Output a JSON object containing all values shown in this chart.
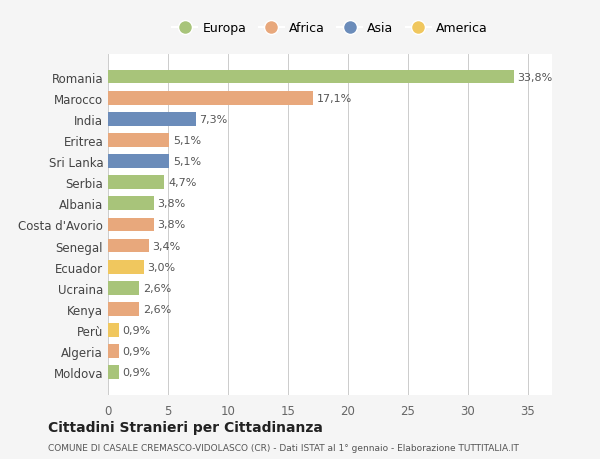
{
  "countries": [
    "Romania",
    "Marocco",
    "India",
    "Eritrea",
    "Sri Lanka",
    "Serbia",
    "Albania",
    "Costa d'Avorio",
    "Senegal",
    "Ecuador",
    "Ucraina",
    "Kenya",
    "Perù",
    "Algeria",
    "Moldova"
  ],
  "values": [
    33.8,
    17.1,
    7.3,
    5.1,
    5.1,
    4.7,
    3.8,
    3.8,
    3.4,
    3.0,
    2.6,
    2.6,
    0.9,
    0.9,
    0.9
  ],
  "labels": [
    "33,8%",
    "17,1%",
    "7,3%",
    "5,1%",
    "5,1%",
    "4,7%",
    "3,8%",
    "3,8%",
    "3,4%",
    "3,0%",
    "2,6%",
    "2,6%",
    "0,9%",
    "0,9%",
    "0,9%"
  ],
  "continents": [
    "Europa",
    "Africa",
    "Asia",
    "Africa",
    "Asia",
    "Europa",
    "Europa",
    "Africa",
    "Africa",
    "America",
    "Europa",
    "Africa",
    "America",
    "Africa",
    "Europa"
  ],
  "colors": {
    "Europa": "#a8c47a",
    "Africa": "#e8a87c",
    "Asia": "#6b8cba",
    "America": "#f0c75e"
  },
  "legend_order": [
    "Europa",
    "Africa",
    "Asia",
    "America"
  ],
  "title": "Cittadini Stranieri per Cittadinanza",
  "subtitle": "COMUNE DI CASALE CREMASCO-VIDOLASCO (CR) - Dati ISTAT al 1° gennaio - Elaborazione TUTTITALIA.IT",
  "xlim": [
    0,
    37
  ],
  "xticks": [
    0,
    5,
    10,
    15,
    20,
    25,
    30,
    35
  ],
  "bg_color": "#f5f5f5",
  "plot_bg_color": "#ffffff"
}
